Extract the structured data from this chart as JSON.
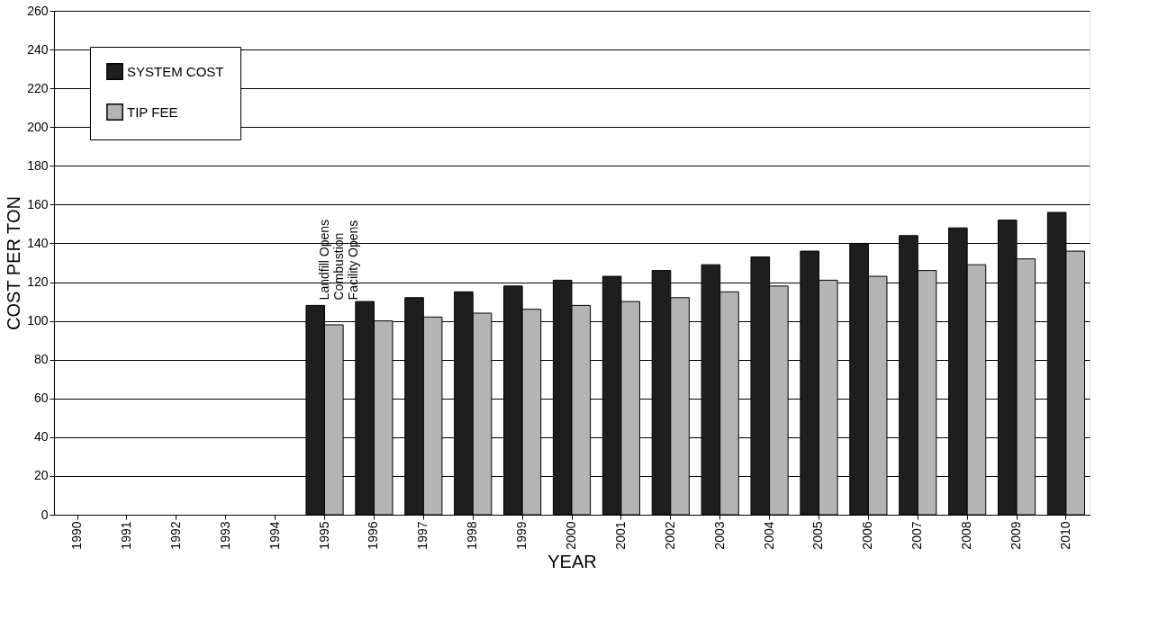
{
  "chart_data": {
    "type": "bar",
    "xlabel": "YEAR",
    "ylabel": "COST PER TON",
    "categories": [
      "1990",
      "1991",
      "1992",
      "1993",
      "1994",
      "1995",
      "1996",
      "1997",
      "1998",
      "1999",
      "2000",
      "2001",
      "2002",
      "2003",
      "2004",
      "2005",
      "2006",
      "2007",
      "2008",
      "2009",
      "2010"
    ],
    "series": [
      {
        "name": "SYSTEM COST",
        "color": "#1e1e1e",
        "values": [
          null,
          null,
          null,
          null,
          null,
          108,
          110,
          112,
          115,
          118,
          121,
          123,
          126,
          129,
          133,
          136,
          140,
          144,
          148,
          152,
          156
        ]
      },
      {
        "name": "TIP FEE",
        "color": "#b4b4b4",
        "values": [
          null,
          null,
          null,
          null,
          null,
          98,
          100,
          102,
          104,
          106,
          108,
          110,
          112,
          115,
          118,
          121,
          123,
          126,
          129,
          132,
          136
        ]
      }
    ],
    "ylim": [
      0,
      260
    ],
    "yticks": [
      0,
      20,
      40,
      60,
      80,
      100,
      120,
      140,
      160,
      180,
      200,
      220,
      240,
      260
    ],
    "grid": "y",
    "legend": "top left",
    "annotations": [
      "Landfill Opens\nCombustion\nFacility Opens"
    ]
  }
}
